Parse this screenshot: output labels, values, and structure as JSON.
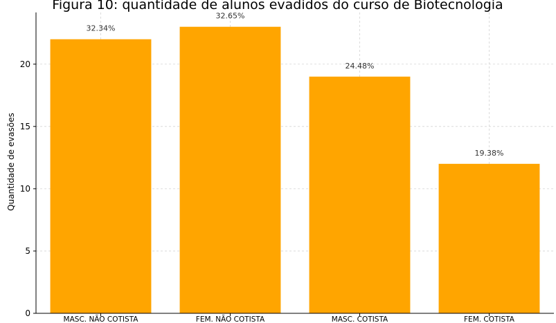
{
  "chart_data": {
    "type": "bar",
    "title": "Figura 10: quantidade de alunos evadidos do curso de Biotecnologia",
    "xlabel": "",
    "ylabel": "Quantidade de evasões",
    "categories": [
      "MASC. NÃO COTISTA",
      "FEM. NÃO COTISTA",
      "MASC. COTISTA",
      "FEM. COTISTA"
    ],
    "values": [
      22,
      23,
      19,
      12
    ],
    "data_labels": [
      "32.34%",
      "32.65%",
      "24.48%",
      "19.38%"
    ],
    "ylim": [
      0,
      24.15
    ],
    "yticks": [
      0,
      5,
      10,
      15,
      20
    ],
    "ytick_labels": [
      "0",
      "5",
      "10",
      "15",
      "20"
    ],
    "grid": true,
    "legend": "none",
    "bar_color": "#ffa500",
    "grid_color": "#d3d3d3"
  }
}
